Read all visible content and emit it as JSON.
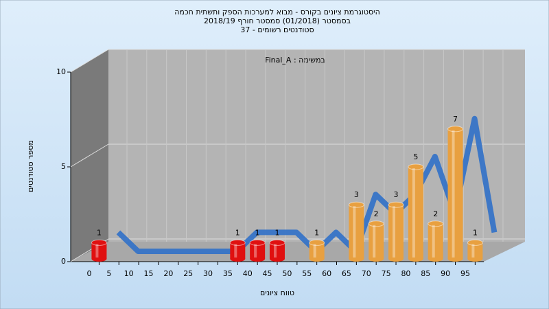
{
  "chart_data": {
    "type": "bar",
    "title": [
      "היסטוגרמת ציונים בקורס - מבוא למערכות הספק ותשתית חכמה",
      "בסמסטר  (01/2018)  סמסטר חורף 2018/19",
      "סטודנטים רשומים - 37"
    ],
    "legend": "Final_A : במשימה",
    "xlabel": "טווח ציונים",
    "ylabel": "מספר סטודנטים",
    "categories": [
      "0",
      "5",
      "10",
      "15",
      "20",
      "25",
      "30",
      "35",
      "40",
      "45",
      "50",
      "55",
      "60",
      "65",
      "70",
      "75",
      "80",
      "85",
      "90",
      "95"
    ],
    "values": [
      1,
      0,
      0,
      0,
      0,
      0,
      0,
      1,
      1,
      1,
      0,
      1,
      0,
      3,
      2,
      3,
      5,
      2,
      7,
      1
    ],
    "colors": [
      "#e01010",
      "#e01010",
      "#e01010",
      "#e01010",
      "#e01010",
      "#e01010",
      "#e01010",
      "#e01010",
      "#e01010",
      "#e01010",
      "#e01010",
      "#e8a040",
      "#e8a040",
      "#e8a040",
      "#e8a040",
      "#e8a040",
      "#e8a040",
      "#e8a040",
      "#e8a040",
      "#e8a040"
    ],
    "line_color": "#3070c8",
    "ylim": [
      0,
      10
    ],
    "yticks": [
      0,
      5,
      10
    ],
    "grid": true
  }
}
